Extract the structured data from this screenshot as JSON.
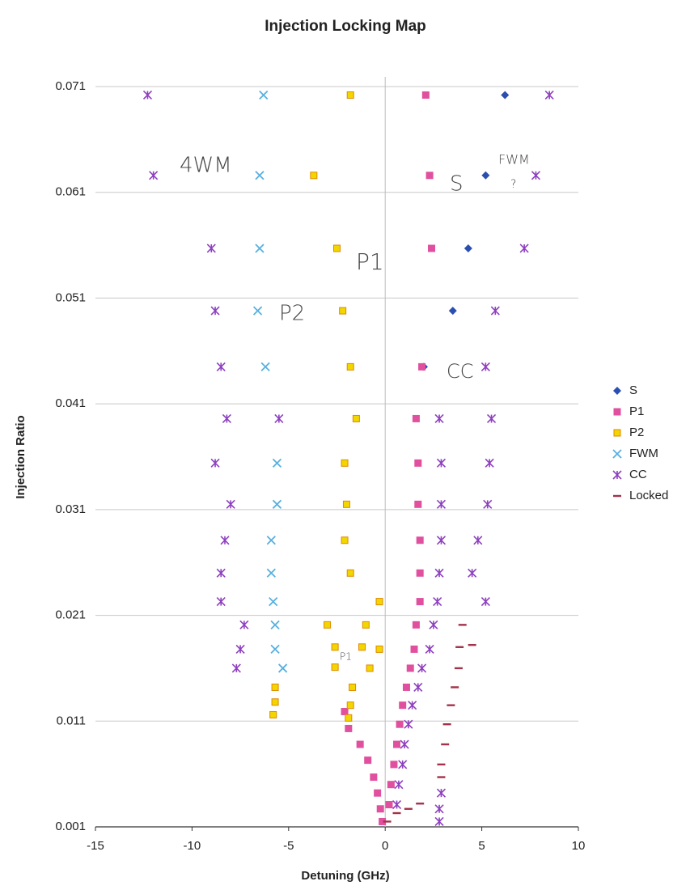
{
  "chart_data": {
    "type": "scatter",
    "title": "Injection Locking Map",
    "xlabel": "Detuning (GHz)",
    "ylabel": "Injection Ratio",
    "xlim": [
      -15,
      10
    ],
    "xticks": [
      -15,
      -10,
      -5,
      0,
      5,
      10
    ],
    "ylim": [
      0.001,
      0.071
    ],
    "yticks": [
      0.001,
      0.011,
      0.021,
      0.031,
      0.041,
      0.051,
      0.061,
      0.071
    ],
    "grid": true,
    "legend": "right",
    "annotations": [
      "4WM",
      "P2",
      "P1",
      "S",
      "FWM",
      "?",
      "CC",
      "P1"
    ],
    "series": [
      {
        "name": "S",
        "color": "#2a4fb0",
        "marker": "diamond",
        "x": [
          6.2,
          5.2,
          4.3,
          3.5,
          2.0
        ],
        "values": [
          0.0702,
          0.0626,
          0.0557,
          0.0498,
          0.0445
        ]
      },
      {
        "name": "P1",
        "color": "#e0509f",
        "marker": "square",
        "x": [
          2.1,
          2.3,
          2.4,
          1.9,
          1.6,
          1.7,
          1.7,
          1.8,
          1.8,
          1.8,
          1.6,
          1.5,
          1.3,
          1.1,
          0.9,
          0.75,
          0.6,
          0.45,
          0.3,
          0.2,
          -2.1,
          -1.9,
          -1.3,
          -0.9,
          -0.6,
          -0.4,
          -0.25,
          -0.15
        ],
        "values": [
          0.0702,
          0.0626,
          0.0557,
          0.0445,
          0.0396,
          0.0354,
          0.0315,
          0.0281,
          0.025,
          0.0223,
          0.0201,
          0.0178,
          0.016,
          0.0142,
          0.0125,
          0.0107,
          0.0088,
          0.0069,
          0.005,
          0.0031,
          0.0119,
          0.0103,
          0.0088,
          0.0073,
          0.0057,
          0.0042,
          0.0027,
          0.0015
        ]
      },
      {
        "name": "P2",
        "color": "#f2d600",
        "marker": "square",
        "x": [
          -1.8,
          -3.7,
          -2.5,
          -2.2,
          -1.8,
          -1.5,
          -2.1,
          -2.0,
          -2.1,
          -1.8,
          -0.3,
          -0.3,
          -0.8,
          -3.0,
          -2.6,
          -2.6,
          -1.7,
          -1.8,
          -1.9,
          -1.0,
          -1.2,
          -5.7,
          -5.7,
          -5.8
        ],
        "values": [
          0.0702,
          0.0626,
          0.0557,
          0.0498,
          0.0445,
          0.0396,
          0.0354,
          0.0315,
          0.0281,
          0.025,
          0.0223,
          0.0178,
          0.016,
          0.0201,
          0.018,
          0.0161,
          0.0142,
          0.0125,
          0.0113,
          0.0201,
          0.018,
          0.0142,
          0.0128,
          0.0116
        ]
      },
      {
        "name": "FWM",
        "color": "#58b0e0",
        "marker": "x",
        "x": [
          -6.3,
          -6.5,
          -6.5,
          -6.6,
          -6.2,
          -5.6,
          -5.6,
          -5.9,
          -5.9,
          -5.8,
          -5.7,
          -5.7,
          -5.3
        ],
        "values": [
          0.0702,
          0.0626,
          0.0557,
          0.0498,
          0.0445,
          0.0354,
          0.0315,
          0.0281,
          0.025,
          0.0223,
          0.0201,
          0.0178,
          0.016
        ]
      },
      {
        "name": "CC",
        "color": "#8e3fbf",
        "marker": "asterisk",
        "x": [
          -12.3,
          -12.0,
          -9.0,
          -8.8,
          -8.5,
          -8.2,
          -8.8,
          -8.0,
          -8.3,
          -8.5,
          -8.5,
          -7.3,
          -7.5,
          -7.7,
          -5.5,
          8.5,
          7.8,
          7.2,
          5.7,
          5.2,
          5.5,
          5.4,
          5.3,
          4.8,
          4.5,
          5.2,
          2.8,
          2.9,
          2.9,
          2.9,
          2.8,
          2.7,
          2.5,
          2.3,
          1.9,
          1.7,
          1.4,
          1.2,
          1.0,
          0.9,
          0.7,
          0.6,
          2.9,
          2.8,
          2.8
        ],
        "values": [
          0.0702,
          0.0626,
          0.0557,
          0.0498,
          0.0445,
          0.0396,
          0.0354,
          0.0315,
          0.0281,
          0.025,
          0.0223,
          0.0201,
          0.0178,
          0.016,
          0.0396,
          0.0702,
          0.0626,
          0.0557,
          0.0498,
          0.0445,
          0.0396,
          0.0354,
          0.0315,
          0.0281,
          0.025,
          0.0223,
          0.0396,
          0.0354,
          0.0315,
          0.0281,
          0.025,
          0.0223,
          0.0201,
          0.0178,
          0.016,
          0.0142,
          0.0125,
          0.0107,
          0.0088,
          0.0069,
          0.005,
          0.0031,
          0.0042,
          0.0027,
          0.0015
        ]
      },
      {
        "name": "Locked",
        "color": "#a3324a",
        "marker": "dash",
        "x": [
          4.0,
          3.85,
          3.8,
          3.6,
          3.4,
          3.2,
          3.1,
          2.9,
          2.9,
          1.8,
          1.2,
          0.6,
          0.1,
          4.5
        ],
        "values": [
          0.0201,
          0.018,
          0.016,
          0.0142,
          0.0125,
          0.0107,
          0.0088,
          0.0069,
          0.0057,
          0.0032,
          0.0027,
          0.0023,
          0.0015,
          0.0182
        ]
      }
    ]
  }
}
